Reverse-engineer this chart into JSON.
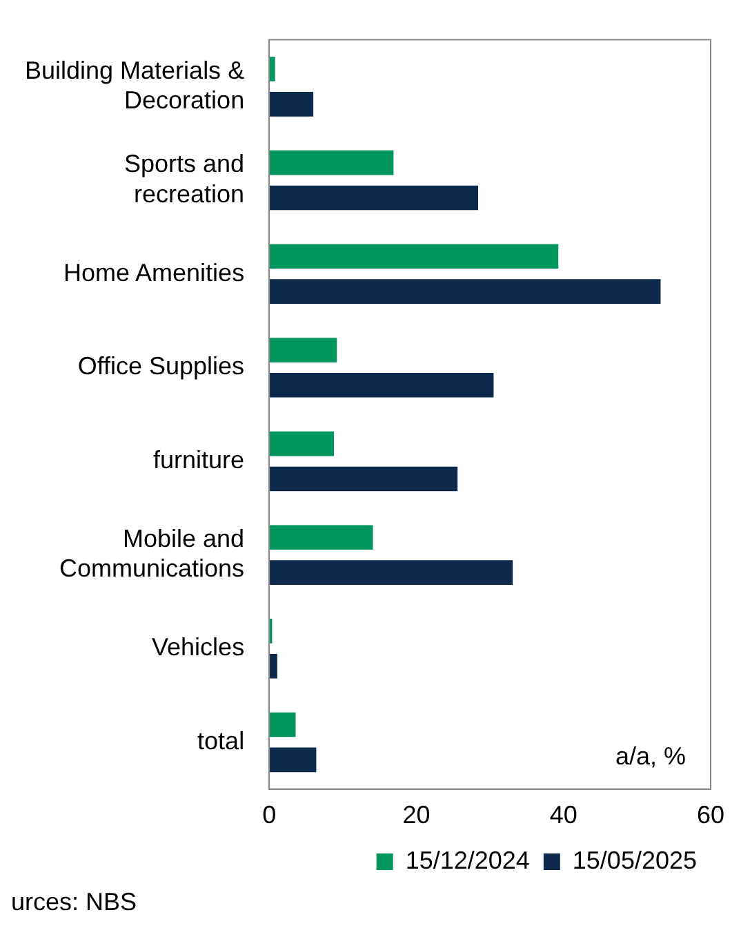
{
  "chart_data": {
    "type": "bar",
    "orientation": "horizontal",
    "categories": [
      "Building Materials & Decoration",
      "Sports and recreation",
      "Home Amenities",
      "Office Supplies",
      "furniture",
      "Mobile and Communications",
      "Vehicles",
      "total"
    ],
    "series": [
      {
        "name": "15/12/2024",
        "color": "#00965e",
        "values": [
          0.8,
          16.9,
          39.3,
          9.2,
          8.8,
          14.1,
          0.4,
          3.6
        ]
      },
      {
        "name": "15/05/2025",
        "color": "#0d2a4d",
        "values": [
          6.0,
          28.4,
          53.2,
          30.5,
          25.6,
          33.1,
          1.1,
          6.4
        ]
      }
    ],
    "xlim": [
      0,
      60
    ],
    "xticks": [
      0,
      20,
      40,
      60
    ],
    "grid": false,
    "legend": "bottom right",
    "annotations": [
      "a/a, %",
      "urces: NBS"
    ]
  }
}
